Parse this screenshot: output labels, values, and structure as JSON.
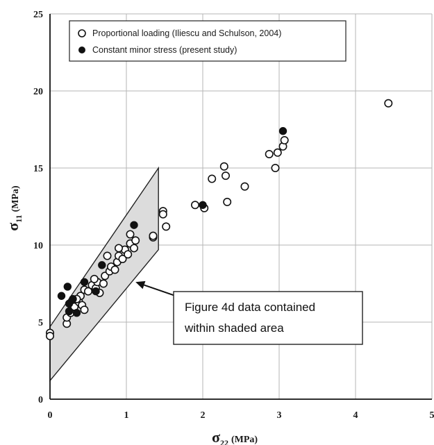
{
  "chart_data": {
    "type": "scatter",
    "xlabel": {
      "symbol": "σ",
      "sub": "22",
      "unit": "(MPa)"
    },
    "ylabel": {
      "symbol": "σ",
      "sub": "11",
      "unit": "(MPa)"
    },
    "xlim": [
      0,
      5
    ],
    "ylim": [
      0,
      25
    ],
    "xticks": [
      "0",
      "1",
      "2",
      "3",
      "4",
      "5"
    ],
    "yticks": [
      "0",
      "5",
      "10",
      "15",
      "20",
      "25"
    ],
    "grid": true,
    "legend_position": "top-left",
    "series": [
      {
        "name": "Proportional loading (Iliescu and Schulson, 2004)",
        "marker": "open-circle",
        "points": [
          [
            0.0,
            4.3
          ],
          [
            0.0,
            4.1
          ],
          [
            0.22,
            4.9
          ],
          [
            0.22,
            5.3
          ],
          [
            0.27,
            5.6
          ],
          [
            0.32,
            6.0
          ],
          [
            0.38,
            6.3
          ],
          [
            0.42,
            6.1
          ],
          [
            0.45,
            5.8
          ],
          [
            0.4,
            6.7
          ],
          [
            0.45,
            7.1
          ],
          [
            0.5,
            7.0
          ],
          [
            0.55,
            7.4
          ],
          [
            0.6,
            7.2
          ],
          [
            0.62,
            7.6
          ],
          [
            0.65,
            6.9
          ],
          [
            0.7,
            7.5
          ],
          [
            0.72,
            8.0
          ],
          [
            0.78,
            8.3
          ],
          [
            0.8,
            8.6
          ],
          [
            0.85,
            8.4
          ],
          [
            0.88,
            8.9
          ],
          [
            0.9,
            9.3
          ],
          [
            0.95,
            9.1
          ],
          [
            0.98,
            9.7
          ],
          [
            1.02,
            9.4
          ],
          [
            1.05,
            10.1
          ],
          [
            1.1,
            9.8
          ],
          [
            1.12,
            10.3
          ],
          [
            1.05,
            10.7
          ],
          [
            1.35,
            10.5
          ],
          [
            1.35,
            10.6
          ],
          [
            1.48,
            12.2
          ],
          [
            1.52,
            11.2
          ],
          [
            1.48,
            12.0
          ],
          [
            1.9,
            12.6
          ],
          [
            2.02,
            12.4
          ],
          [
            2.12,
            14.3
          ],
          [
            2.28,
            15.1
          ],
          [
            2.3,
            14.5
          ],
          [
            2.32,
            12.8
          ],
          [
            2.55,
            13.8
          ],
          [
            2.87,
            15.9
          ],
          [
            2.95,
            15.0
          ],
          [
            2.98,
            16.0
          ],
          [
            3.05,
            16.4
          ],
          [
            3.07,
            16.8
          ],
          [
            4.43,
            19.2
          ],
          [
            0.9,
            9.8
          ],
          [
            0.75,
            9.3
          ],
          [
            0.35,
            6.5
          ],
          [
            0.58,
            7.8
          ]
        ]
      },
      {
        "name": "Constant minor stress (present study)",
        "marker": "filled-circle",
        "points": [
          [
            0.15,
            6.7
          ],
          [
            0.23,
            7.3
          ],
          [
            0.25,
            6.2
          ],
          [
            0.3,
            6.5
          ],
          [
            0.35,
            5.6
          ],
          [
            0.25,
            5.7
          ],
          [
            0.45,
            7.6
          ],
          [
            0.6,
            7.0
          ],
          [
            0.68,
            8.7
          ],
          [
            1.1,
            11.3
          ],
          [
            2.0,
            12.6
          ],
          [
            3.05,
            17.4
          ]
        ]
      }
    ],
    "shaded_region": [
      [
        0.0,
        1.2
      ],
      [
        1.42,
        9.7
      ],
      [
        1.42,
        15.0
      ],
      [
        0.0,
        4.7
      ]
    ],
    "annotation": {
      "lines": [
        "Figure 4d data contained",
        "within shaded area"
      ],
      "arrow_to": [
        1.12,
        7.6
      ]
    }
  }
}
